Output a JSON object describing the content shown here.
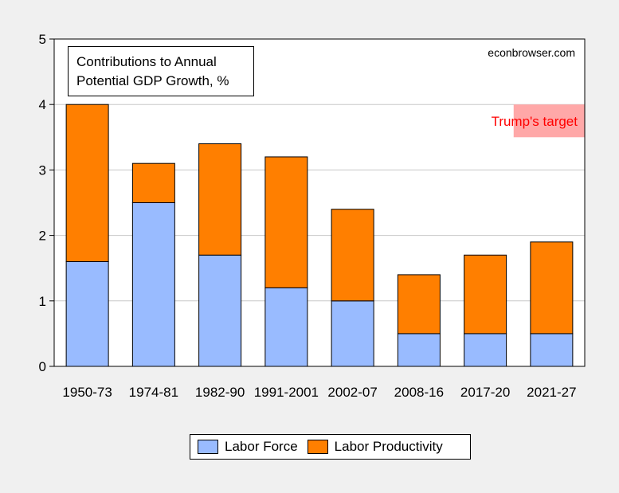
{
  "title_lines": [
    "Contributions to Annual",
    "Potential GDP Growth, %"
  ],
  "source": "econbrowser.com",
  "chart_data": {
    "type": "bar",
    "stacked": true,
    "categories": [
      "1950-73",
      "1974-81",
      "1982-90",
      "1991-2001",
      "2002-07",
      "2008-16",
      "2017-20",
      "2021-27"
    ],
    "series": [
      {
        "name": "Labor Force",
        "color": "#99bbff",
        "values": [
          1.6,
          2.5,
          1.7,
          1.2,
          1.0,
          0.5,
          0.5,
          0.5
        ]
      },
      {
        "name": "Labor Productivity",
        "color": "#ff7f00",
        "values": [
          2.4,
          0.6,
          1.7,
          2.0,
          1.4,
          0.9,
          1.2,
          1.4
        ]
      }
    ],
    "ylim": [
      0,
      5
    ],
    "yticks": [
      0,
      1,
      2,
      3,
      4,
      5
    ],
    "grid": true,
    "legend_position": "bottom",
    "target_band": {
      "label": "Trump's target",
      "ymin": 3.5,
      "ymax": 4.0,
      "color": "#ffa8a8",
      "label_color": "#ff0000",
      "x_start_category": "2021-27"
    }
  }
}
